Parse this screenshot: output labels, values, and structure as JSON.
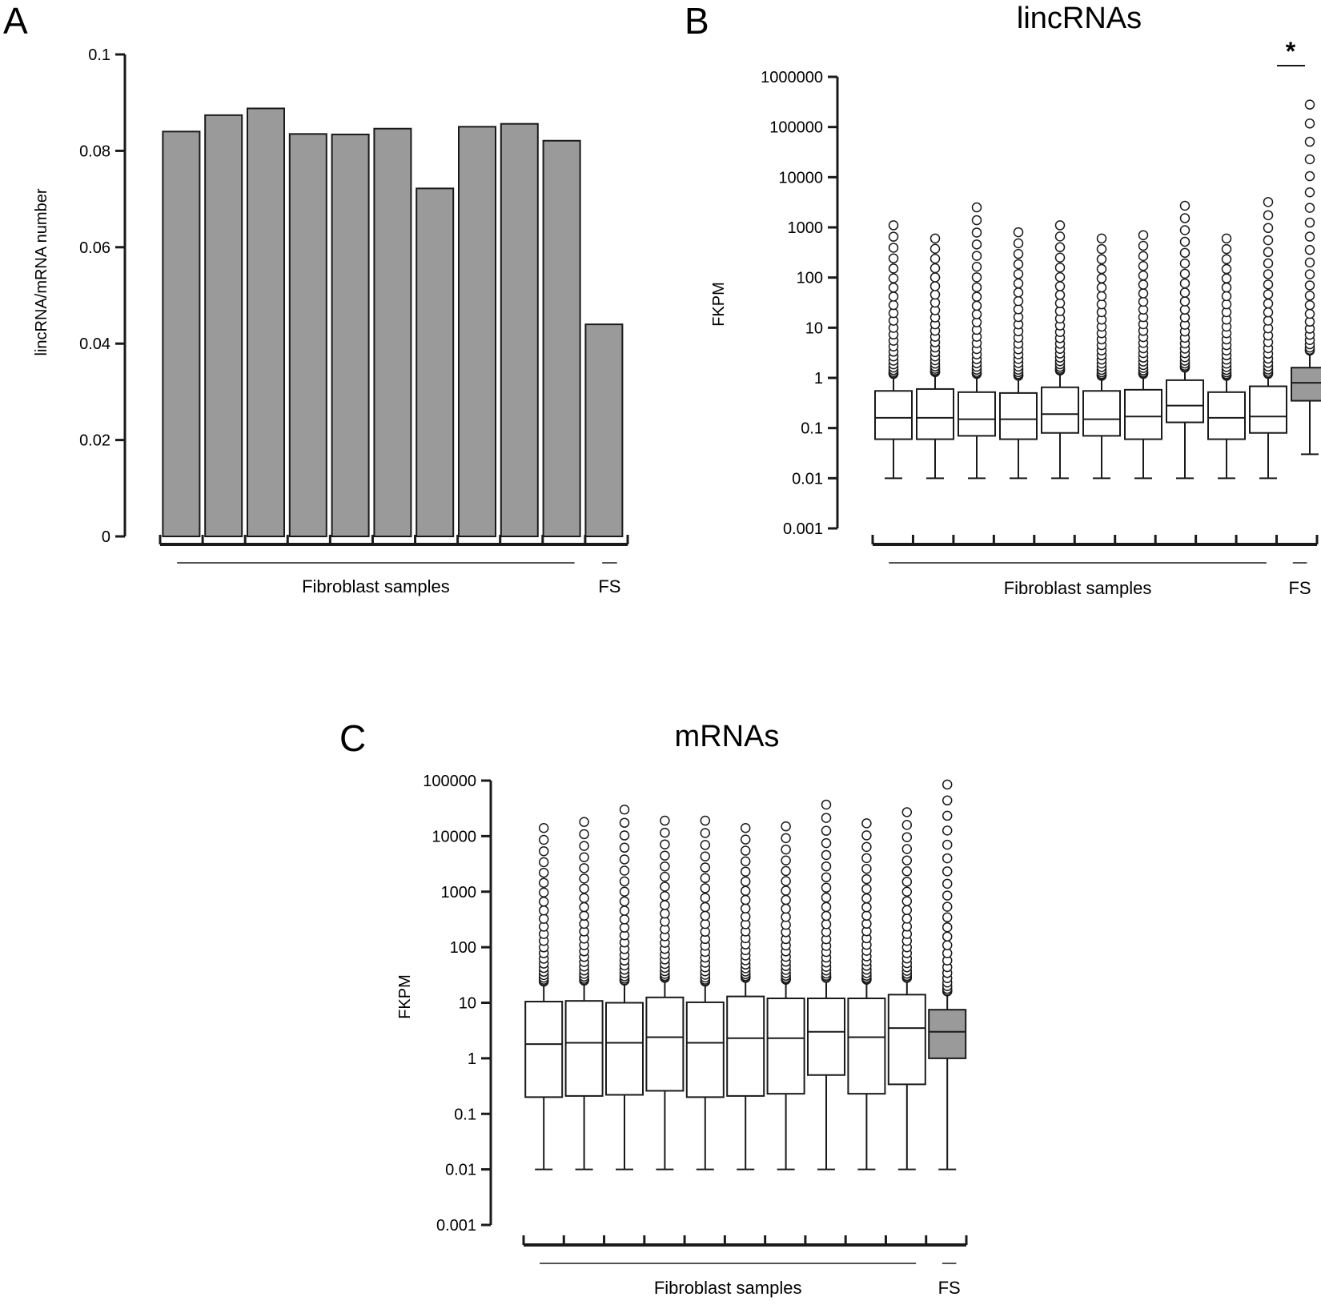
{
  "colors": {
    "fill_gray": "#9a9a9a",
    "fill_white": "#ffffff",
    "stroke": "#1a1a1a"
  },
  "chart_data": [
    {
      "panel_label": "A",
      "type": "bar",
      "title": "",
      "ylabel": "lincRNA/mRNA number",
      "ylim": [
        0,
        0.1
      ],
      "yticks": [
        "0",
        "0.02",
        "0.04",
        "0.06",
        "0.08",
        "0.1"
      ],
      "ytick_values": [
        0,
        0.02,
        0.04,
        0.06,
        0.08,
        0.1
      ],
      "values": [
        0.084,
        0.0874,
        0.0888,
        0.0835,
        0.0834,
        0.0846,
        0.0722,
        0.085,
        0.0856,
        0.0821,
        0.044
      ],
      "groups": [
        {
          "label": "Fibroblast samples",
          "count": 10
        },
        {
          "label": "FS",
          "count": 1
        }
      ],
      "grid": false
    },
    {
      "panel_label": "B",
      "type": "boxplot",
      "title": "lincRNAs",
      "ylabel": "FKPM",
      "yscale": "log",
      "ylim": [
        0.001,
        1000000
      ],
      "yticks": [
        "0.001",
        "0.01",
        "0.1",
        "1",
        "10",
        "100",
        "1000",
        "10000",
        "100000",
        "1000000"
      ],
      "ytick_values": [
        0.001,
        0.01,
        0.1,
        1,
        10,
        100,
        1000,
        10000,
        100000,
        1000000
      ],
      "groups": [
        {
          "label": "Fibroblast samples",
          "count": 10
        },
        {
          "label": "FS",
          "count": 1
        }
      ],
      "significance_label": "*",
      "boxes": [
        {
          "q1": 0.06,
          "median": 0.16,
          "q3": 0.55,
          "whisker_low": 0.01,
          "whisker_high": 1.2,
          "max": 1100,
          "highlighted": false
        },
        {
          "q1": 0.06,
          "median": 0.16,
          "q3": 0.6,
          "whisker_low": 0.01,
          "whisker_high": 1.3,
          "max": 600,
          "highlighted": false
        },
        {
          "q1": 0.07,
          "median": 0.15,
          "q3": 0.52,
          "whisker_low": 0.01,
          "whisker_high": 1.2,
          "max": 2500,
          "highlighted": false
        },
        {
          "q1": 0.06,
          "median": 0.15,
          "q3": 0.5,
          "whisker_low": 0.01,
          "whisker_high": 1.1,
          "max": 800,
          "highlighted": false
        },
        {
          "q1": 0.08,
          "median": 0.19,
          "q3": 0.65,
          "whisker_low": 0.01,
          "whisker_high": 1.4,
          "max": 1100,
          "highlighted": false
        },
        {
          "q1": 0.07,
          "median": 0.15,
          "q3": 0.55,
          "whisker_low": 0.01,
          "whisker_high": 1.1,
          "max": 600,
          "highlighted": false
        },
        {
          "q1": 0.06,
          "median": 0.17,
          "q3": 0.58,
          "whisker_low": 0.01,
          "whisker_high": 1.2,
          "max": 700,
          "highlighted": false
        },
        {
          "q1": 0.13,
          "median": 0.28,
          "q3": 0.9,
          "whisker_low": 0.01,
          "whisker_high": 1.6,
          "max": 2700,
          "highlighted": false
        },
        {
          "q1": 0.06,
          "median": 0.16,
          "q3": 0.52,
          "whisker_low": 0.01,
          "whisker_high": 1.1,
          "max": 600,
          "highlighted": false
        },
        {
          "q1": 0.08,
          "median": 0.17,
          "q3": 0.68,
          "whisker_low": 0.01,
          "whisker_high": 1.2,
          "max": 3200,
          "highlighted": false
        },
        {
          "q1": 0.35,
          "median": 0.8,
          "q3": 1.6,
          "whisker_low": 0.03,
          "whisker_high": 3.5,
          "max": 280000,
          "highlighted": true
        }
      ],
      "grid": false
    },
    {
      "panel_label": "C",
      "type": "boxplot",
      "title": "mRNAs",
      "ylabel": "FKPM",
      "yscale": "log",
      "ylim": [
        0.001,
        100000
      ],
      "yticks": [
        "0.001",
        "0.01",
        "0.1",
        "1",
        "10",
        "100",
        "1000",
        "10000",
        "100000"
      ],
      "ytick_values": [
        0.001,
        0.01,
        0.1,
        1,
        10,
        100,
        1000,
        10000,
        100000
      ],
      "groups": [
        {
          "label": "Fibroblast samples",
          "count": 10
        },
        {
          "label": "FS",
          "count": 1
        }
      ],
      "boxes": [
        {
          "q1": 0.2,
          "median": 1.8,
          "q3": 10.5,
          "whisker_low": 0.01,
          "whisker_high": 24,
          "max": 14000,
          "highlighted": false
        },
        {
          "q1": 0.21,
          "median": 1.9,
          "q3": 10.8,
          "whisker_low": 0.01,
          "whisker_high": 25,
          "max": 18000,
          "highlighted": false
        },
        {
          "q1": 0.22,
          "median": 1.9,
          "q3": 10,
          "whisker_low": 0.01,
          "whisker_high": 25,
          "max": 30000,
          "highlighted": false
        },
        {
          "q1": 0.26,
          "median": 2.4,
          "q3": 12.5,
          "whisker_low": 0.01,
          "whisker_high": 28,
          "max": 19000,
          "highlighted": false
        },
        {
          "q1": 0.2,
          "median": 1.9,
          "q3": 10.2,
          "whisker_low": 0.01,
          "whisker_high": 24,
          "max": 19000,
          "highlighted": false
        },
        {
          "q1": 0.21,
          "median": 2.3,
          "q3": 13,
          "whisker_low": 0.01,
          "whisker_high": 28,
          "max": 14000,
          "highlighted": false
        },
        {
          "q1": 0.23,
          "median": 2.3,
          "q3": 12,
          "whisker_low": 0.01,
          "whisker_high": 26,
          "max": 15000,
          "highlighted": false
        },
        {
          "q1": 0.5,
          "median": 3.0,
          "q3": 12,
          "whisker_low": 0.01,
          "whisker_high": 28,
          "max": 37000,
          "highlighted": false
        },
        {
          "q1": 0.23,
          "median": 2.4,
          "q3": 12,
          "whisker_low": 0.01,
          "whisker_high": 26,
          "max": 17000,
          "highlighted": false
        },
        {
          "q1": 0.34,
          "median": 3.5,
          "q3": 14,
          "whisker_low": 0.01,
          "whisker_high": 28,
          "max": 27000,
          "highlighted": false
        },
        {
          "q1": 1.0,
          "median": 3.0,
          "q3": 7.5,
          "whisker_low": 0.01,
          "whisker_high": 16,
          "max": 85000,
          "highlighted": true
        }
      ],
      "grid": false
    }
  ]
}
